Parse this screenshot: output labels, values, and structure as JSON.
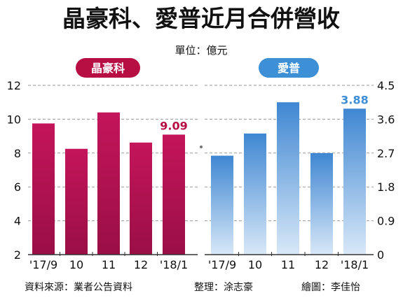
{
  "title": "晶豪科、愛普近月合併營收",
  "unit": "單位：億元",
  "footer": {
    "source": "資料來源：業者公告資料",
    "editor": "整理：涂志豪",
    "artist": "繪圖：李佳怡"
  },
  "colors": {
    "left_bar": "#b0124e",
    "left_accent": "#b70f43",
    "right_bar": "#4a8fd4",
    "right_accent": "#3d8fd6"
  },
  "chart_data": [
    {
      "type": "bar",
      "name": "晶豪科",
      "categories": [
        "'17/9",
        "10",
        "11",
        "12",
        "'18/1"
      ],
      "values": [
        9.75,
        8.25,
        10.4,
        8.62,
        9.09
      ],
      "ylim": [
        2,
        12
      ],
      "yticks": [
        "2",
        "4",
        "6",
        "8",
        "10",
        "12"
      ],
      "ytick_values": [
        2,
        4,
        6,
        8,
        10,
        12
      ],
      "axis_side": "left",
      "data_label": {
        "index": 4,
        "text": "9.09"
      },
      "grid": true
    },
    {
      "type": "bar",
      "name": "愛普",
      "categories": [
        "'17/9",
        "10",
        "11",
        "12",
        "'18/1"
      ],
      "values": [
        2.63,
        3.22,
        4.05,
        2.7,
        3.88
      ],
      "ylim": [
        0,
        4.5
      ],
      "yticks": [
        "0",
        "0.9",
        "1.8",
        "2.7",
        "3.6",
        "4.5"
      ],
      "ytick_values": [
        0,
        0.9,
        1.8,
        2.7,
        3.6,
        4.5
      ],
      "axis_side": "right",
      "data_label": {
        "index": 4,
        "text": "3.88"
      },
      "grid": true
    }
  ]
}
